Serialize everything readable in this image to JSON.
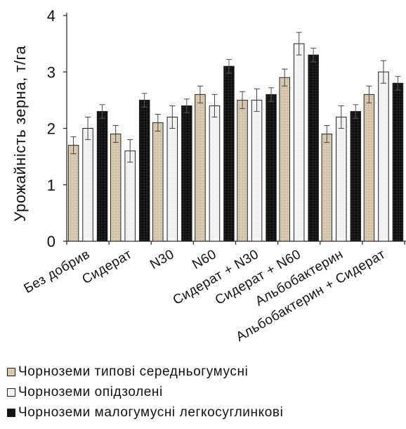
{
  "chart_data": {
    "type": "bar",
    "title": "",
    "xlabel": "",
    "ylabel": "Урожайність зерна, т/га",
    "ylim": [
      0,
      4
    ],
    "yticks": [
      0,
      1,
      2,
      3,
      4
    ],
    "grid": false,
    "legend_position": "bottom",
    "categories": [
      "Без добрив",
      "Сидерат",
      "N30",
      "N60",
      "Сидерат + N30",
      "Сидерат + N60",
      "Альбобактерин",
      "Альбобактерин + Сидерат"
    ],
    "series": [
      {
        "name": "Чорноземи типові середньогумусні",
        "color": "#d9cbb0",
        "values": [
          1.7,
          1.9,
          2.1,
          2.6,
          2.5,
          2.9,
          1.9,
          2.6
        ],
        "errors": [
          0.15,
          0.15,
          0.15,
          0.15,
          0.15,
          0.15,
          0.15,
          0.15
        ]
      },
      {
        "name": "Чорноземи опідзолені",
        "color": "#f2f2f2",
        "values": [
          2.0,
          1.6,
          2.2,
          2.4,
          2.5,
          3.5,
          2.2,
          3.0
        ],
        "errors": [
          0.2,
          0.2,
          0.2,
          0.2,
          0.2,
          0.2,
          0.2,
          0.2
        ]
      },
      {
        "name": "Чорноземи малогумусні легкосуглинкові",
        "color": "#111111",
        "values": [
          2.3,
          2.5,
          2.4,
          3.1,
          2.6,
          3.3,
          2.3,
          2.8
        ],
        "errors": [
          0.12,
          0.12,
          0.12,
          0.12,
          0.12,
          0.12,
          0.12,
          0.12
        ]
      }
    ]
  }
}
